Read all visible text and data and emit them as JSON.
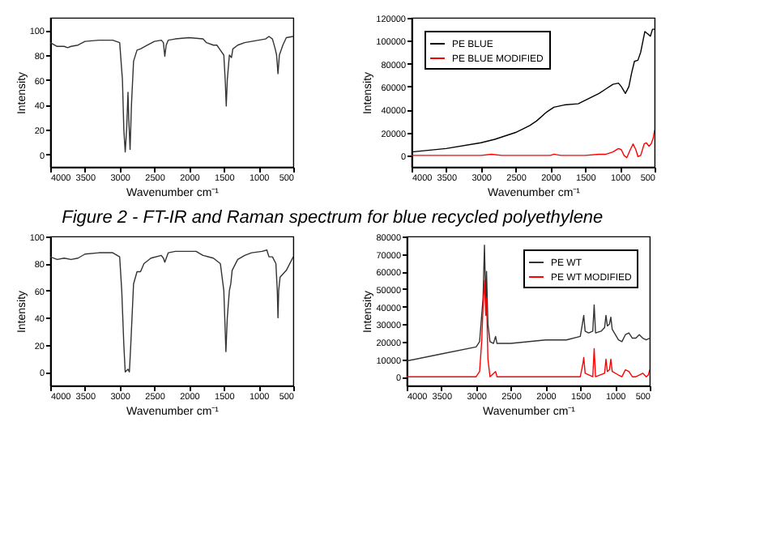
{
  "chart_data": [
    {
      "type": "line",
      "xlabel": "Wavenumber cm⁻¹",
      "ylabel": "Intensity",
      "annotations": [
        "Figure 2 - FT-IR and Raman spectrum for blue recycled polyethylene"
      ],
      "xlim": [
        4000,
        500
      ],
      "xticks": [
        4000,
        3500,
        3000,
        2500,
        2000,
        1500,
        1000,
        500
      ],
      "ylim": [
        -10,
        110
      ],
      "yticks": [
        0,
        20,
        40,
        60,
        80,
        100
      ],
      "grid": false,
      "legend": false,
      "x": [
        4000,
        3900,
        3800,
        3750,
        3700,
        3600,
        3500,
        3300,
        3100,
        3000,
        2960,
        2940,
        2920,
        2900,
        2880,
        2870,
        2850,
        2830,
        2800,
        2750,
        2700,
        2600,
        2500,
        2400,
        2370,
        2350,
        2330,
        2300,
        2200,
        2000,
        1800,
        1750,
        1650,
        1600,
        1550,
        1500,
        1480,
        1465,
        1450,
        1420,
        1390,
        1370,
        1300,
        1200,
        1100,
        1000,
        900,
        850,
        800,
        760,
        740,
        720,
        700,
        650,
        600,
        500
      ],
      "series": [
        {
          "color": "#333333",
          "values": [
            90,
            87,
            87,
            86,
            87,
            88,
            91,
            92,
            92,
            90,
            60,
            20,
            2,
            20,
            50,
            30,
            4,
            40,
            75,
            84,
            85,
            88,
            91,
            92,
            90,
            79,
            88,
            92,
            93,
            94,
            93,
            90,
            88,
            88,
            84,
            80,
            60,
            39,
            60,
            80,
            78,
            85,
            88,
            90,
            91,
            92,
            93,
            95,
            93,
            85,
            80,
            65,
            80,
            88,
            94,
            95
          ]
        }
      ]
    },
    {
      "type": "line",
      "xlabel": "Wavenumber cm⁻¹",
      "ylabel": "Intensity",
      "xlim": [
        4000,
        500
      ],
      "xticks": [
        4000,
        3500,
        3000,
        2500,
        2000,
        1500,
        1000,
        500
      ],
      "ylim": [
        -10000,
        120000
      ],
      "yticks": [
        0,
        20000,
        40000,
        60000,
        80000,
        100000,
        120000
      ],
      "grid": false,
      "legend": "top left",
      "series": [
        {
          "name": "PE BLUE",
          "color": "#000000",
          "x": [
            4000,
            3500,
            3000,
            2800,
            2500,
            2300,
            2200,
            2050,
            1950,
            1800,
            1600,
            1500,
            1300,
            1200,
            1100,
            1020,
            980,
            920,
            870,
            830,
            790,
            740,
            700,
            640,
            600,
            560,
            530,
            500
          ],
          "values": [
            3000,
            6000,
            11000,
            14000,
            20000,
            26000,
            30000,
            38000,
            42000,
            44000,
            45000,
            48000,
            54000,
            58000,
            62000,
            63000,
            60000,
            54000,
            60000,
            72000,
            82000,
            83000,
            90000,
            108000,
            106000,
            104000,
            110000,
            110000
          ]
        },
        {
          "name": "PE BLUE MODIFIED",
          "color": "#ff0000",
          "x": [
            4000,
            3000,
            2850,
            2700,
            2000,
            1950,
            1850,
            1500,
            1300,
            1200,
            1100,
            1020,
            980,
            940,
            900,
            850,
            810,
            770,
            740,
            700,
            650,
            620,
            580,
            550,
            520,
            500
          ],
          "values": [
            0,
            0,
            1000,
            0,
            0,
            1000,
            0,
            0,
            1000,
            1000,
            3000,
            6000,
            5000,
            0,
            -2000,
            5000,
            10000,
            5000,
            -1000,
            0,
            10000,
            11000,
            8000,
            10000,
            15000,
            22000
          ]
        }
      ]
    },
    {
      "type": "line",
      "xlabel": "Wavenumber cm⁻¹",
      "ylabel": "Intensity",
      "xlim": [
        4000,
        500
      ],
      "xticks": [
        4000,
        3500,
        3000,
        2500,
        2000,
        1500,
        1000,
        500
      ],
      "ylim": [
        -10,
        100
      ],
      "yticks": [
        0,
        20,
        40,
        60,
        80,
        100
      ],
      "grid": false,
      "legend": false,
      "x": [
        4000,
        3900,
        3800,
        3700,
        3600,
        3500,
        3300,
        3100,
        3000,
        2970,
        2940,
        2920,
        2900,
        2880,
        2860,
        2840,
        2800,
        2750,
        2700,
        2650,
        2550,
        2400,
        2370,
        2350,
        2300,
        2200,
        2000,
        1900,
        1800,
        1650,
        1550,
        1500,
        1470,
        1450,
        1420,
        1400,
        1380,
        1300,
        1200,
        1100,
        950,
        880,
        850,
        800,
        750,
        730,
        720,
        710,
        690,
        600,
        500
      ],
      "series": [
        {
          "color": "#333333",
          "values": [
            85,
            83,
            84,
            83,
            84,
            87,
            88,
            88,
            85,
            60,
            20,
            0,
            1,
            2,
            0,
            20,
            65,
            74,
            74,
            80,
            84,
            86,
            84,
            81,
            88,
            89,
            89,
            89,
            86,
            84,
            80,
            60,
            15,
            40,
            60,
            65,
            75,
            83,
            86,
            88,
            89,
            90,
            85,
            85,
            80,
            60,
            40,
            60,
            70,
            75,
            85
          ]
        }
      ]
    },
    {
      "type": "line",
      "xlabel": "Wavenumber cm⁻¹",
      "ylabel": "Intensity",
      "xlim": [
        4000,
        500
      ],
      "xticks": [
        4000,
        3500,
        3000,
        2500,
        2000,
        1500,
        1000,
        500
      ],
      "ylim": [
        -5000,
        80000
      ],
      "yticks": [
        0,
        10000,
        20000,
        30000,
        40000,
        50000,
        60000,
        70000,
        80000
      ],
      "grid": false,
      "legend": "top right",
      "series": [
        {
          "name": "PE WT",
          "color": "#333333",
          "x": [
            4000,
            3500,
            3000,
            2950,
            2930,
            2900,
            2880,
            2860,
            2850,
            2830,
            2800,
            2750,
            2720,
            2700,
            2500,
            2000,
            1700,
            1500,
            1470,
            1450,
            1430,
            1380,
            1320,
            1300,
            1280,
            1200,
            1150,
            1130,
            1110,
            1080,
            1060,
            1040,
            950,
            900,
            850,
            800,
            750,
            700,
            650,
            600,
            550,
            500
          ],
          "values": [
            9000,
            13000,
            17000,
            20000,
            30000,
            45000,
            75000,
            40000,
            60000,
            30000,
            20000,
            19000,
            23000,
            19000,
            19000,
            21000,
            21000,
            23000,
            30000,
            35000,
            26000,
            25000,
            26000,
            41000,
            25000,
            26000,
            28000,
            35000,
            29000,
            30000,
            34000,
            27000,
            21000,
            20000,
            24000,
            25000,
            22000,
            22000,
            24000,
            22000,
            21000,
            22000
          ]
        },
        {
          "name": "PE WT MODIFIED",
          "color": "#ff0000",
          "x": [
            4000,
            3000,
            2950,
            2920,
            2900,
            2880,
            2860,
            2850,
            2830,
            2800,
            2720,
            2700,
            1500,
            1460,
            1450,
            1430,
            1320,
            1300,
            1280,
            1150,
            1130,
            1110,
            1080,
            1060,
            1040,
            950,
            900,
            850,
            800,
            750,
            700,
            650,
            600,
            550,
            520,
            500
          ],
          "values": [
            0,
            0,
            3000,
            20000,
            40000,
            55000,
            35000,
            45000,
            10000,
            0,
            3000,
            0,
            0,
            8000,
            11000,
            2000,
            0,
            16000,
            0,
            2000,
            10000,
            3000,
            4000,
            10000,
            3000,
            1000,
            0,
            4000,
            3000,
            0,
            0,
            1000,
            2000,
            0,
            1000,
            4000
          ]
        }
      ]
    }
  ]
}
